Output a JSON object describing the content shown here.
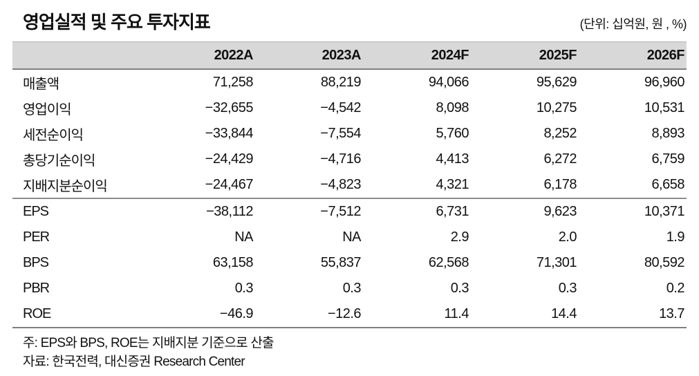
{
  "title": "영업실적 및 주요 투자지표",
  "unit_note": "(단위: 십억원, 원 , %)",
  "table": {
    "columns": [
      "2022A",
      "2023A",
      "2024F",
      "2025F",
      "2026F"
    ],
    "rows": [
      {
        "label": "매출액",
        "values": [
          "71,258",
          "88,219",
          "94,066",
          "95,629",
          "96,960"
        ]
      },
      {
        "label": "영업이익",
        "values": [
          "−32,655",
          "−4,542",
          "8,098",
          "10,275",
          "10,531"
        ]
      },
      {
        "label": "세전순이익",
        "values": [
          "−33,844",
          "−7,554",
          "5,760",
          "8,252",
          "8,893"
        ]
      },
      {
        "label": "총당기순이익",
        "values": [
          "−24,429",
          "−4,716",
          "4,413",
          "6,272",
          "6,759"
        ]
      },
      {
        "label": "지배지분순이익",
        "values": [
          "−24,467",
          "−4,823",
          "4,321",
          "6,178",
          "6,658"
        ]
      },
      {
        "label": "EPS",
        "values": [
          "−38,112",
          "−7,512",
          "6,731",
          "9,623",
          "10,371"
        ]
      },
      {
        "label": "PER",
        "values": [
          "NA",
          "NA",
          "2.9",
          "2.0",
          "1.9"
        ]
      },
      {
        "label": "BPS",
        "values": [
          "63,158",
          "55,837",
          "62,568",
          "71,301",
          "80,592"
        ]
      },
      {
        "label": "PBR",
        "values": [
          "0.3",
          "0.3",
          "0.3",
          "0.3",
          "0.2"
        ]
      },
      {
        "label": "ROE",
        "values": [
          "−46.9",
          "−12.6",
          "11.4",
          "14.4",
          "13.7"
        ]
      }
    ],
    "section_start_index": 5
  },
  "footnotes": [
    "주: EPS와 BPS, ROE는 지배지분 기준으로 산출",
    "자료: 한국전력, 대신증권 Research Center"
  ],
  "colors": {
    "header_bg": "#d8d8d8",
    "rule_dark": "#7f7f7f",
    "rule_mid": "#8c8c8c"
  }
}
